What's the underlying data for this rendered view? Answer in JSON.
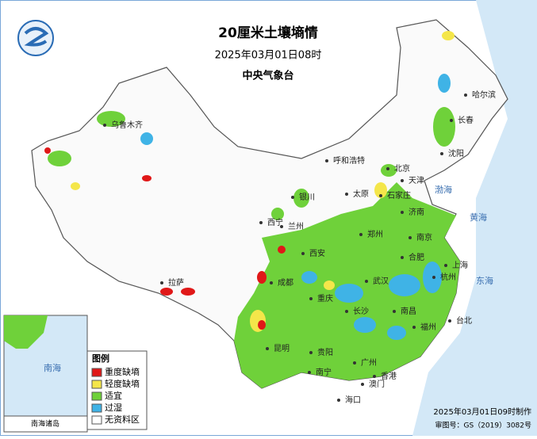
{
  "header": {
    "title": "20厘米土壤墒情",
    "time": "2025年03月01日08时",
    "agency": "中央气象台"
  },
  "legend": {
    "title": "图例",
    "items": [
      "重度缺墒",
      "轻度缺墒",
      "适宜",
      "过湿",
      "无资料区"
    ]
  },
  "cities": [
    "北京",
    "天津",
    "石家庄",
    "济南",
    "郑州",
    "武汉",
    "南京",
    "上海",
    "杭州",
    "合肥",
    "南昌",
    "长沙",
    "福州",
    "广州",
    "南宁",
    "贵阳",
    "昆明",
    "成都",
    "重庆",
    "西安",
    "兰州",
    "银川",
    "西宁",
    "拉萨",
    "乌鲁木齐",
    "呼和浩特",
    "太原",
    "沈阳",
    "长春",
    "哈尔滨",
    "海口",
    "台北",
    "香港",
    "澳门"
  ],
  "seas": [
    "渤海",
    "黄海",
    "东海",
    "南海"
  ],
  "inset": {
    "label": "南海诸岛"
  },
  "footer": {
    "made": "2025年03月01日09时制作",
    "approval": "审图号：GS（2019）3082号"
  }
}
